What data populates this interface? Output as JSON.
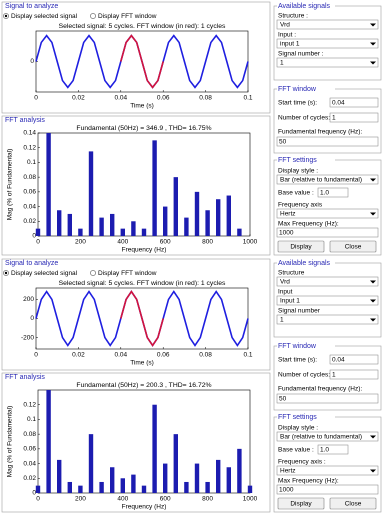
{
  "panels": [
    {
      "signal_label": "Signal to analyze",
      "radios": [
        "Display selected signal",
        "Display FFT window"
      ],
      "fft_label": "FFT analysis",
      "right": {
        "available_signals": "Available signals",
        "structure_label": "Structure :",
        "structure_value": "Vrd",
        "input_label": "Input :",
        "input_value": "input 1",
        "signal_number_label": "Signal number :",
        "signal_number_value": "1",
        "fft_window": "FFT window",
        "start_time_label": "Start time (s):",
        "start_time_value": "0.04",
        "cycles_label": "Number of cycles:",
        "cycles_value": "1",
        "fund_freq_label": "Fundamental frequency (Hz):",
        "fund_freq_value": "50",
        "fft_settings": "FFT settings",
        "display_style_label": "Display style :",
        "display_style_value": "Bar (relative to fundamental)",
        "base_value_label": "Base value :",
        "base_value_value": "1.0",
        "freq_axis_label": "Frequency axis",
        "freq_axis_value": "Hertz",
        "max_freq_label": "Max Frequency (Hz):",
        "max_freq_value": "1000",
        "display_button": "Display",
        "close_button": "Close"
      }
    },
    {
      "signal_label": "Signal to analyze",
      "radios": [
        "Display selected signal",
        "Display FFT window"
      ],
      "fft_label": "FFT analysis",
      "right": {
        "available_signals": "Available signals",
        "structure_label": "Structure",
        "structure_value": "Vrd",
        "input_label": "Input",
        "input_value": "Input 1",
        "signal_number_label": "Signal number",
        "signal_number_value": "1",
        "fft_window": "FFT window",
        "start_time_label": "Start time (s):",
        "start_time_value": "0.04",
        "cycles_label": "Number of cycles:",
        "cycles_value": "1",
        "fund_freq_label": "Fundamental frequency (Hz):",
        "fund_freq_value": "50",
        "fft_settings": "FFT settings",
        "display_style_label": "Display style :",
        "display_style_value": "Bar (relative to fundamental)",
        "base_value_label": "Base value :",
        "base_value_value": "1.0",
        "freq_axis_label": "Frequency axis :",
        "freq_axis_value": "Hertz",
        "max_freq_label": "Max Frequency (Hz):",
        "max_freq_value": "1000",
        "display_button": "Display",
        "close_button": "Close"
      }
    }
  ],
  "chart_data": [
    {
      "type": "line",
      "title": "Selected signal: 5 cycles. FFT window (in red): 1 cycles",
      "xlabel": "Time (s)",
      "x": [
        0,
        0.0025,
        0.005,
        0.0075,
        0.01,
        0.0125,
        0.015,
        0.0175,
        0.02,
        0.0225,
        0.025,
        0.0275,
        0.03,
        0.0325,
        0.035,
        0.0375,
        0.04,
        0.0425,
        0.045,
        0.0475,
        0.05,
        0.0525,
        0.055,
        0.0575,
        0.06,
        0.0625,
        0.065,
        0.0675,
        0.07,
        0.0725,
        0.075,
        0.0775,
        0.08,
        0.0825,
        0.085,
        0.0875,
        0.09,
        0.0925,
        0.095,
        0.0975,
        0.1
      ],
      "series": [
        {
          "color": "#1f1fe0",
          "values": [
            0,
            250,
            340,
            250,
            0,
            -250,
            -340,
            -250,
            0,
            250,
            340,
            250,
            0,
            -250,
            -340,
            -250,
            0,
            250,
            340,
            250,
            0,
            -250,
            -340,
            -250,
            0,
            250,
            340,
            250,
            0,
            -250,
            -340,
            -250,
            0,
            250,
            340,
            250,
            0,
            -250,
            -340,
            -250,
            0
          ]
        },
        {
          "color": "#d4143c",
          "values": [
            null,
            null,
            null,
            null,
            null,
            null,
            null,
            null,
            null,
            null,
            null,
            null,
            null,
            null,
            null,
            null,
            0,
            250,
            340,
            250,
            0,
            -250,
            -340,
            -250,
            0,
            null,
            null,
            null,
            null,
            null,
            null,
            null,
            null,
            null,
            null,
            null,
            null,
            null,
            null,
            null,
            null
          ]
        }
      ],
      "xlim": [
        0,
        0.1
      ],
      "xticks": [
        0,
        0.02,
        0.04,
        0.06,
        0.08,
        0.1
      ],
      "ylim": [
        -400,
        400
      ],
      "yticks": [
        0
      ]
    },
    {
      "type": "bar",
      "title": "Fundamental (50Hz) = 346.9 , THD= 16.75%",
      "xlabel": "Frequency (Hz)",
      "ylabel": "Mag (% of Fundamental)",
      "color": "#1c1cb0",
      "x": [
        0,
        50,
        100,
        150,
        200,
        250,
        300,
        350,
        400,
        450,
        500,
        550,
        600,
        650,
        700,
        750,
        800,
        850,
        900,
        950
      ],
      "values": [
        0.01,
        0.14,
        0.035,
        0.03,
        0.01,
        0.115,
        0.025,
        0.03,
        0.01,
        0.02,
        0.01,
        0.13,
        0.04,
        0.08,
        0.025,
        0.06,
        0.035,
        0.05,
        0.055,
        0.01
      ],
      "xlim": [
        0,
        1000
      ],
      "xticks": [
        0,
        200,
        400,
        600,
        800,
        1000
      ],
      "ylim": [
        0,
        0.14
      ],
      "yticks": [
        0,
        0.02,
        0.04,
        0.06,
        0.08,
        0.1,
        0.12,
        0.14
      ]
    },
    {
      "type": "line",
      "title": "Selected signal: 5 cycles. FFT window (in red): 1 cycles",
      "xlabel": "Time (s)",
      "x": [
        0,
        0.0025,
        0.005,
        0.0075,
        0.01,
        0.0125,
        0.015,
        0.0175,
        0.02,
        0.0225,
        0.025,
        0.0275,
        0.03,
        0.0325,
        0.035,
        0.0375,
        0.04,
        0.0425,
        0.045,
        0.0475,
        0.05,
        0.0525,
        0.055,
        0.0575,
        0.06,
        0.0625,
        0.065,
        0.0675,
        0.07,
        0.0725,
        0.075,
        0.0775,
        0.08,
        0.0825,
        0.085,
        0.0875,
        0.09,
        0.0925,
        0.095,
        0.0975,
        0.1
      ],
      "series": [
        {
          "color": "#1f1fe0",
          "values": [
            0,
            200,
            283,
            200,
            0,
            -200,
            -283,
            -200,
            0,
            200,
            283,
            200,
            0,
            -200,
            -283,
            -200,
            0,
            200,
            283,
            200,
            0,
            -200,
            -283,
            -200,
            0,
            200,
            283,
            200,
            0,
            -200,
            -283,
            -200,
            0,
            200,
            283,
            200,
            0,
            -200,
            -283,
            -200,
            0
          ]
        },
        {
          "color": "#d4143c",
          "values": [
            null,
            null,
            null,
            null,
            null,
            null,
            null,
            null,
            null,
            null,
            null,
            null,
            null,
            null,
            null,
            null,
            0,
            200,
            283,
            200,
            0,
            -200,
            -283,
            -200,
            0,
            null,
            null,
            null,
            null,
            null,
            null,
            null,
            null,
            null,
            null,
            null,
            null,
            null,
            null,
            null,
            null
          ]
        }
      ],
      "xlim": [
        0,
        0.1
      ],
      "xticks": [
        0,
        0.02,
        0.04,
        0.06,
        0.08,
        0.1
      ],
      "ylim": [
        -320,
        320
      ],
      "yticks": [
        -200,
        0,
        200
      ]
    },
    {
      "type": "bar",
      "title": "Fundamental (50Hz) = 200.3 , THD= 16.72%",
      "xlabel": "Frequency (Hz)",
      "ylabel": "Mag (% of Fundamental)",
      "color": "#1c1cb0",
      "x": [
        0,
        50,
        100,
        150,
        200,
        250,
        300,
        350,
        400,
        450,
        500,
        550,
        600,
        650,
        700,
        750,
        800,
        850,
        900,
        950,
        1000
      ],
      "values": [
        0.01,
        0.14,
        0.045,
        0.015,
        0.01,
        0.08,
        0.015,
        0.035,
        0.02,
        0.025,
        0.01,
        0.12,
        0.04,
        0.08,
        0.015,
        0.04,
        0.015,
        0.045,
        0.035,
        0.06,
        0.01
      ],
      "xlim": [
        0,
        1000
      ],
      "xticks": [
        0,
        200,
        400,
        600,
        800,
        1000
      ],
      "ylim": [
        0,
        0.14
      ],
      "yticks": [
        0,
        0.02,
        0.04,
        0.06,
        0.08,
        0.1,
        0.12
      ]
    }
  ]
}
